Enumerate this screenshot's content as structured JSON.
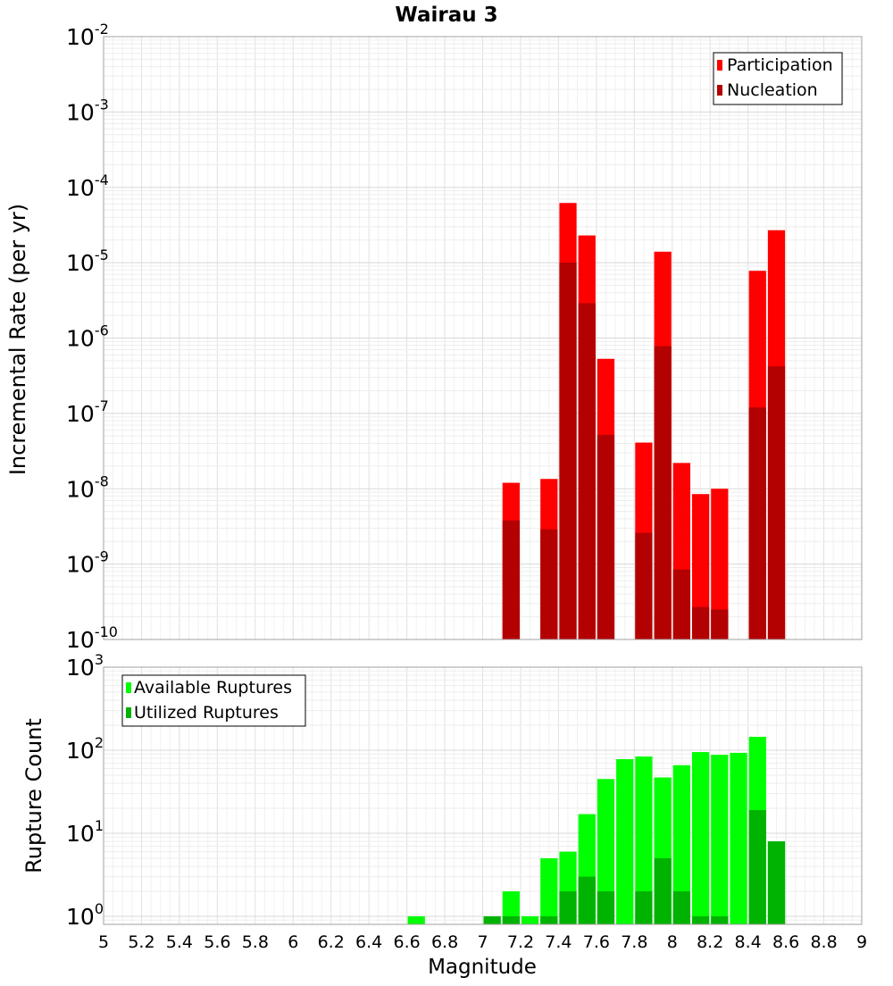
{
  "chart_data": [
    {
      "type": "bar",
      "title": "Wairau 3",
      "xlabel": "",
      "ylabel": "Incremental Rate (per yr)",
      "yscale": "log",
      "ylim": [
        1e-10,
        0.01
      ],
      "xlim": [
        5,
        9
      ],
      "y_tick_labels": [
        {
          "base": "10",
          "exp": "-10"
        },
        {
          "base": "10",
          "exp": "-9"
        },
        {
          "base": "10",
          "exp": "-8"
        },
        {
          "base": "10",
          "exp": "-7"
        },
        {
          "base": "10",
          "exp": "-6"
        },
        {
          "base": "10",
          "exp": "-5"
        },
        {
          "base": "10",
          "exp": "-4"
        },
        {
          "base": "10",
          "exp": "-3"
        },
        {
          "base": "10",
          "exp": "-2"
        }
      ],
      "grid": true,
      "legend_position": "top-right",
      "x": [
        7.15,
        7.35,
        7.45,
        7.55,
        7.65,
        7.85,
        7.95,
        8.05,
        8.15,
        8.25,
        8.45,
        8.55
      ],
      "series": [
        {
          "name": "Participation",
          "color": "#ff0000",
          "values": [
            1.2e-08,
            1.35e-08,
            6.2e-05,
            2.3e-05,
            5.3e-07,
            4.1e-08,
            1.4e-05,
            2.2e-08,
            8.5e-09,
            1e-08,
            7.8e-06,
            2.7e-05
          ]
        },
        {
          "name": "Nucleation",
          "color": "#b30000",
          "values": [
            3.8e-09,
            2.9e-09,
            1e-05,
            2.9e-06,
            5.2e-08,
            2.6e-09,
            7.8e-07,
            8.5e-10,
            2.7e-10,
            2.5e-10,
            1.2e-07,
            4.2e-07
          ]
        }
      ]
    },
    {
      "type": "bar",
      "title": "",
      "xlabel": "Magnitude",
      "ylabel": "Rupture Count",
      "yscale": "log",
      "ylim": [
        0.8,
        1000
      ],
      "xlim": [
        5,
        9
      ],
      "y_tick_labels": [
        {
          "base": "10",
          "exp": "0"
        },
        {
          "base": "10",
          "exp": "1"
        },
        {
          "base": "10",
          "exp": "2"
        },
        {
          "base": "10",
          "exp": "3"
        }
      ],
      "x_tick_labels": [
        "5",
        "5.2",
        "5.4",
        "5.6",
        "5.8",
        "6",
        "6.2",
        "6.4",
        "6.6",
        "6.8",
        "7",
        "7.2",
        "7.4",
        "7.6",
        "7.8",
        "8",
        "8.2",
        "8.4",
        "8.6",
        "8.8",
        "9"
      ],
      "grid": true,
      "legend_position": "top-left",
      "x": [
        6.65,
        7.05,
        7.15,
        7.25,
        7.35,
        7.45,
        7.55,
        7.65,
        7.75,
        7.85,
        7.95,
        8.05,
        8.15,
        8.25,
        8.35,
        8.45,
        8.55
      ],
      "series": [
        {
          "name": "Available Ruptures",
          "color": "#00ff00",
          "values": [
            1,
            1,
            2,
            1,
            5,
            6,
            17,
            45,
            78,
            84,
            47,
            66,
            95,
            88,
            93,
            145,
            8
          ]
        },
        {
          "name": "Utilized Ruptures",
          "color": "#00b300",
          "values": [
            null,
            1,
            1,
            null,
            1,
            2,
            3,
            2,
            null,
            2,
            5,
            2,
            1,
            1,
            null,
            19,
            8
          ]
        }
      ]
    }
  ]
}
